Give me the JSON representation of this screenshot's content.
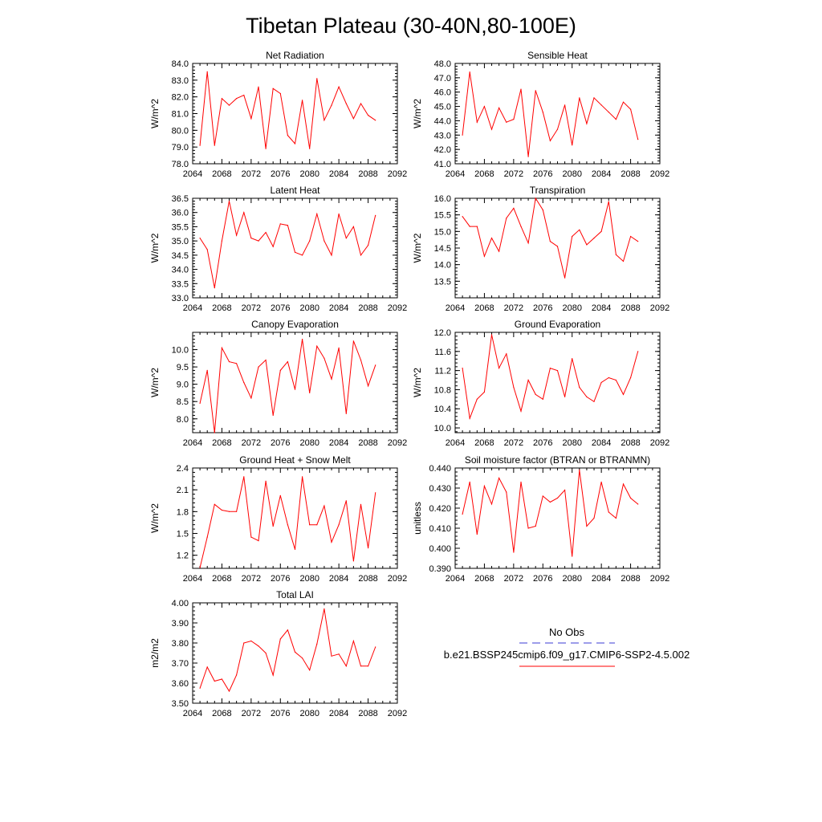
{
  "figure": {
    "title": "Tibetan Plateau (30-40N,80-100E)"
  },
  "legend": {
    "obs_label": "No Obs",
    "obs_color": "#3b3bd6",
    "run_label": "b.e21.BSSP245cmip6.f09_g17.CMIP6-SSP2-4.5.002",
    "run_color": "#ff0000"
  },
  "chart_data": [
    {
      "type": "line",
      "title": "Net Radiation",
      "ylabel": "W/m^2",
      "xlim": [
        2064,
        2092
      ],
      "ylim": [
        78.0,
        84.0
      ],
      "xticks": [
        2064,
        2068,
        2072,
        2076,
        2080,
        2084,
        2088,
        2092
      ],
      "yticks": [
        78.0,
        79.0,
        80.0,
        81.0,
        82.0,
        83.0,
        84.0
      ],
      "ytick_labels": [
        "78.0",
        "79.0",
        "80.0",
        "81.0",
        "82.0",
        "83.0",
        "84.0"
      ],
      "x": [
        2065,
        2066,
        2067,
        2068,
        2069,
        2070,
        2071,
        2072,
        2073,
        2074,
        2075,
        2076,
        2077,
        2078,
        2079,
        2080,
        2081,
        2082,
        2083,
        2084,
        2085,
        2086,
        2087,
        2088,
        2089
      ],
      "y": [
        79.1,
        83.5,
        79.1,
        81.9,
        81.5,
        81.9,
        82.1,
        80.7,
        82.6,
        78.9,
        82.5,
        82.2,
        79.7,
        79.2,
        81.8,
        78.9,
        83.1,
        80.6,
        81.5,
        82.6,
        81.6,
        80.7,
        81.6,
        80.9,
        80.6
      ]
    },
    {
      "type": "line",
      "title": "Sensible Heat",
      "ylabel": "W/m^2",
      "xlim": [
        2064,
        2092
      ],
      "ylim": [
        41.0,
        48.0
      ],
      "xticks": [
        2064,
        2068,
        2072,
        2076,
        2080,
        2084,
        2088,
        2092
      ],
      "yticks": [
        41.0,
        42.0,
        43.0,
        44.0,
        45.0,
        46.0,
        47.0,
        48.0
      ],
      "ytick_labels": [
        "41.0",
        "42.0",
        "43.0",
        "44.0",
        "45.0",
        "46.0",
        "47.0",
        "48.0"
      ],
      "x": [
        2065,
        2066,
        2067,
        2068,
        2069,
        2070,
        2071,
        2072,
        2073,
        2074,
        2075,
        2076,
        2077,
        2078,
        2079,
        2080,
        2081,
        2082,
        2083,
        2084,
        2085,
        2086,
        2087,
        2088,
        2089
      ],
      "y": [
        43.0,
        47.4,
        43.9,
        45.0,
        43.4,
        44.9,
        43.9,
        44.1,
        46.2,
        41.5,
        46.1,
        44.6,
        42.6,
        43.4,
        45.1,
        42.3,
        45.6,
        43.8,
        45.6,
        45.1,
        44.6,
        44.1,
        45.3,
        44.8,
        42.7
      ]
    },
    {
      "type": "line",
      "title": "Latent Heat",
      "ylabel": "W/m^2",
      "xlim": [
        2064,
        2092
      ],
      "ylim": [
        33.0,
        36.5
      ],
      "xticks": [
        2064,
        2068,
        2072,
        2076,
        2080,
        2084,
        2088,
        2092
      ],
      "yticks": [
        33.0,
        33.5,
        34.0,
        34.5,
        35.0,
        35.5,
        36.0,
        36.5
      ],
      "ytick_labels": [
        "33.0",
        "33.5",
        "34.0",
        "34.5",
        "35.0",
        "35.5",
        "36.0",
        "36.5"
      ],
      "x": [
        2065,
        2066,
        2067,
        2068,
        2069,
        2070,
        2071,
        2072,
        2073,
        2074,
        2075,
        2076,
        2077,
        2078,
        2079,
        2080,
        2081,
        2082,
        2083,
        2084,
        2085,
        2086,
        2087,
        2088,
        2089
      ],
      "y": [
        35.1,
        34.7,
        33.35,
        35.0,
        36.4,
        35.2,
        36.0,
        35.1,
        35.0,
        35.3,
        34.8,
        35.6,
        35.55,
        34.6,
        34.5,
        35.0,
        35.95,
        35.0,
        34.5,
        35.95,
        35.1,
        35.5,
        34.5,
        34.85,
        35.9
      ]
    },
    {
      "type": "line",
      "title": "Transpiration",
      "ylabel": "W/m^2",
      "xlim": [
        2064,
        2092
      ],
      "ylim": [
        13.0,
        16.0
      ],
      "xticks": [
        2064,
        2068,
        2072,
        2076,
        2080,
        2084,
        2088,
        2092
      ],
      "yticks": [
        13.5,
        14.0,
        14.5,
        15.0,
        15.5,
        16.0
      ],
      "ytick_labels": [
        "13.5",
        "14.0",
        "14.5",
        "15.0",
        "15.5",
        "16.0"
      ],
      "x": [
        2065,
        2066,
        2067,
        2068,
        2069,
        2070,
        2071,
        2072,
        2073,
        2074,
        2075,
        2076,
        2077,
        2078,
        2079,
        2080,
        2081,
        2082,
        2083,
        2084,
        2085,
        2086,
        2087,
        2088,
        2089
      ],
      "y": [
        15.45,
        15.15,
        15.15,
        14.25,
        14.8,
        14.4,
        15.4,
        15.7,
        15.15,
        14.65,
        16.0,
        15.65,
        14.7,
        14.55,
        13.6,
        14.85,
        15.05,
        14.6,
        14.8,
        15.0,
        15.9,
        14.3,
        14.1,
        14.85,
        14.7
      ]
    },
    {
      "type": "line",
      "title": "Canopy Evaporation",
      "ylabel": "W/m^2",
      "xlim": [
        2064,
        2092
      ],
      "ylim": [
        7.6,
        10.5
      ],
      "xticks": [
        2064,
        2068,
        2072,
        2076,
        2080,
        2084,
        2088,
        2092
      ],
      "yticks": [
        8.0,
        8.5,
        9.0,
        9.5,
        10.0
      ],
      "ytick_labels": [
        "8.0",
        "8.5",
        "9.0",
        "9.5",
        "10.0"
      ],
      "x": [
        2065,
        2066,
        2067,
        2068,
        2069,
        2070,
        2071,
        2072,
        2073,
        2074,
        2075,
        2076,
        2077,
        2078,
        2079,
        2080,
        2081,
        2082,
        2083,
        2084,
        2085,
        2086,
        2087,
        2088,
        2089
      ],
      "y": [
        8.45,
        9.4,
        7.6,
        10.05,
        9.65,
        9.6,
        9.05,
        8.6,
        9.5,
        9.7,
        8.1,
        9.4,
        9.65,
        8.85,
        10.3,
        8.75,
        10.1,
        9.75,
        9.15,
        10.05,
        8.15,
        10.25,
        9.7,
        8.95,
        9.55
      ]
    },
    {
      "type": "line",
      "title": "Ground Evaporation",
      "ylabel": "W/m^2",
      "xlim": [
        2064,
        2092
      ],
      "ylim": [
        9.9,
        12.0
      ],
      "xticks": [
        2064,
        2068,
        2072,
        2076,
        2080,
        2084,
        2088,
        2092
      ],
      "yticks": [
        10.0,
        10.4,
        10.8,
        11.2,
        11.6,
        12.0
      ],
      "ytick_labels": [
        "10.0",
        "10.4",
        "10.8",
        "11.2",
        "11.6",
        "12.0"
      ],
      "x": [
        2065,
        2066,
        2067,
        2068,
        2069,
        2070,
        2071,
        2072,
        2073,
        2074,
        2075,
        2076,
        2077,
        2078,
        2079,
        2080,
        2081,
        2082,
        2083,
        2084,
        2085,
        2086,
        2087,
        2088,
        2089
      ],
      "y": [
        11.25,
        10.2,
        10.6,
        10.75,
        11.95,
        11.25,
        11.55,
        10.85,
        10.35,
        11.0,
        10.7,
        10.6,
        11.25,
        11.2,
        10.65,
        11.45,
        10.85,
        10.65,
        10.55,
        10.95,
        11.05,
        11.0,
        10.7,
        11.05,
        11.6
      ]
    },
    {
      "type": "line",
      "title": "Ground Heat + Snow Melt",
      "ylabel": "W/m^2",
      "xlim": [
        2064,
        2092
      ],
      "ylim": [
        1.02,
        2.4
      ],
      "xticks": [
        2064,
        2068,
        2072,
        2076,
        2080,
        2084,
        2088,
        2092
      ],
      "yticks": [
        1.2,
        1.5,
        1.8,
        2.1,
        2.4
      ],
      "ytick_labels": [
        "1.2",
        "1.5",
        "1.8",
        "2.1",
        "2.4"
      ],
      "x": [
        2065,
        2066,
        2067,
        2068,
        2069,
        2070,
        2071,
        2072,
        2073,
        2074,
        2075,
        2076,
        2077,
        2078,
        2079,
        2080,
        2081,
        2082,
        2083,
        2084,
        2085,
        2086,
        2087,
        2088,
        2089
      ],
      "y": [
        1.03,
        1.45,
        1.9,
        1.82,
        1.8,
        1.8,
        2.28,
        1.45,
        1.4,
        2.22,
        1.6,
        2.02,
        1.62,
        1.28,
        2.28,
        1.62,
        1.62,
        1.88,
        1.38,
        1.62,
        1.95,
        1.12,
        1.9,
        1.3,
        2.06
      ]
    },
    {
      "type": "line",
      "title": "Soil moisture factor (BTRAN or BTRANMN)",
      "ylabel": "unitless",
      "xlim": [
        2064,
        2092
      ],
      "ylim": [
        0.39,
        0.44
      ],
      "xticks": [
        2064,
        2068,
        2072,
        2076,
        2080,
        2084,
        2088,
        2092
      ],
      "yticks": [
        0.39,
        0.4,
        0.41,
        0.42,
        0.43,
        0.44
      ],
      "ytick_labels": [
        "0.390",
        "0.400",
        "0.410",
        "0.420",
        "0.430",
        "0.440"
      ],
      "x": [
        2065,
        2066,
        2067,
        2068,
        2069,
        2070,
        2071,
        2072,
        2073,
        2074,
        2075,
        2076,
        2077,
        2078,
        2079,
        2080,
        2081,
        2082,
        2083,
        2084,
        2085,
        2086,
        2087,
        2088,
        2089
      ],
      "y": [
        0.417,
        0.433,
        0.407,
        0.431,
        0.422,
        0.435,
        0.428,
        0.398,
        0.433,
        0.41,
        0.411,
        0.426,
        0.423,
        0.425,
        0.429,
        0.396,
        0.439,
        0.411,
        0.415,
        0.433,
        0.418,
        0.415,
        0.432,
        0.425,
        0.422
      ]
    },
    {
      "type": "line",
      "title": "Total LAI",
      "ylabel": "m2/m2",
      "xlim": [
        2064,
        2092
      ],
      "ylim": [
        3.5,
        4.0
      ],
      "xticks": [
        2064,
        2068,
        2072,
        2076,
        2080,
        2084,
        2088,
        2092
      ],
      "yticks": [
        3.5,
        3.6,
        3.7,
        3.8,
        3.9,
        4.0
      ],
      "ytick_labels": [
        "3.50",
        "3.60",
        "3.70",
        "3.80",
        "3.90",
        "4.00"
      ],
      "x": [
        2065,
        2066,
        2067,
        2068,
        2069,
        2070,
        2071,
        2072,
        2073,
        2074,
        2075,
        2076,
        2077,
        2078,
        2079,
        2080,
        2081,
        2082,
        2083,
        2084,
        2085,
        2086,
        2087,
        2088,
        2089
      ],
      "y": [
        3.575,
        3.68,
        3.61,
        3.62,
        3.56,
        3.64,
        3.8,
        3.81,
        3.785,
        3.75,
        3.64,
        3.82,
        3.865,
        3.755,
        3.725,
        3.665,
        3.795,
        3.97,
        3.735,
        3.745,
        3.685,
        3.81,
        3.685,
        3.685,
        3.78
      ]
    }
  ]
}
